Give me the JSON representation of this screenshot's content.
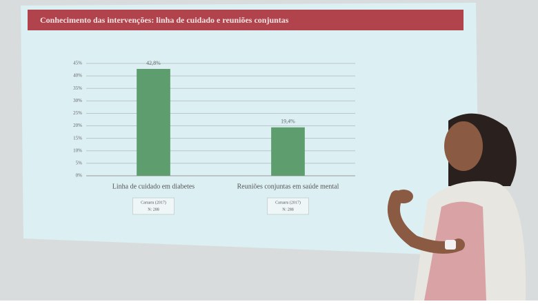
{
  "chart_data": {
    "type": "bar",
    "title": "Conhecimento das intervenções: linha de cuidado e reuniões conjuntas",
    "categories": [
      "Linha de cuidado em diabetes",
      "Reuniões conjuntas em saúde mental"
    ],
    "values": [
      42.8,
      19.4
    ],
    "value_labels": [
      "42,8%",
      "19,4%"
    ],
    "color": "#5e9e6e",
    "ylim": [
      0,
      45
    ],
    "yticks": [
      {
        "value": 0,
        "label": "0%"
      },
      {
        "value": 5,
        "label": "5%"
      },
      {
        "value": 10,
        "label": "10%"
      },
      {
        "value": 15,
        "label": "15%"
      },
      {
        "value": 20,
        "label": "20%"
      },
      {
        "value": 25,
        "label": "25%"
      },
      {
        "value": 30,
        "label": "30%"
      },
      {
        "value": 35,
        "label": "35%"
      },
      {
        "value": 40,
        "label": "40%"
      },
      {
        "value": 45,
        "label": "45%"
      }
    ],
    "grid": true,
    "annotations": [
      [
        "Caruaru (2017)",
        "N: 288"
      ],
      [
        "Caruaru (2017)",
        "N: 288"
      ]
    ]
  }
}
